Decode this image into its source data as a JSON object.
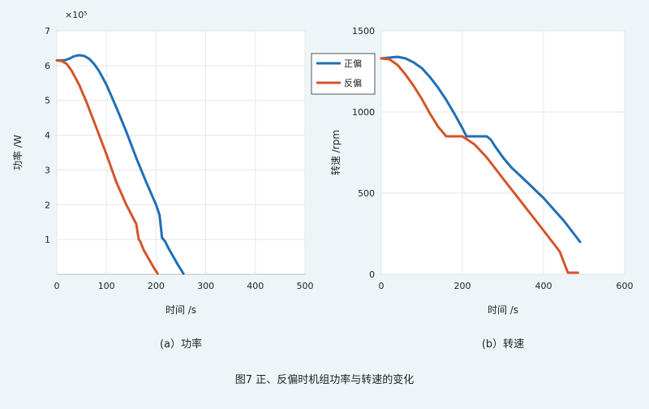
{
  "figure_caption": "图7 正、反偏时机组功率与转速的变化",
  "panel_a_caption": "(a）功率",
  "panel_b_caption": "(b）转速",
  "colors": {
    "forward": "#1f6fb5",
    "reverse": "#d4542a"
  },
  "chart_data": [
    {
      "type": "line",
      "xlabel": "时间 /s",
      "ylabel": "功率 /W",
      "multiplier": "×10⁵",
      "xlim": [
        0,
        500
      ],
      "ylim": [
        0,
        7
      ],
      "xticks": [
        "0",
        "100",
        "200",
        "300",
        "400",
        "500"
      ],
      "yticks": [
        "1",
        "2",
        "3",
        "4",
        "5",
        "6",
        "7"
      ],
      "grid": true,
      "series": [
        {
          "name": "正偏",
          "x": [
            0,
            15,
            25,
            35,
            45,
            55,
            65,
            75,
            85,
            100,
            120,
            140,
            160,
            180,
            200,
            207,
            212,
            218,
            225,
            235,
            245,
            255
          ],
          "y": [
            6.15,
            6.15,
            6.2,
            6.27,
            6.3,
            6.28,
            6.2,
            6.05,
            5.85,
            5.45,
            4.8,
            4.1,
            3.35,
            2.65,
            2.0,
            1.7,
            1.05,
            0.95,
            0.75,
            0.5,
            0.25,
            0.02
          ]
        },
        {
          "name": "反偏",
          "x": [
            0,
            10,
            20,
            30,
            45,
            60,
            80,
            100,
            120,
            140,
            160,
            165,
            168,
            175,
            185,
            195,
            203
          ],
          "y": [
            6.15,
            6.13,
            6.05,
            5.85,
            5.45,
            4.95,
            4.2,
            3.45,
            2.65,
            2.0,
            1.45,
            1.0,
            0.95,
            0.7,
            0.45,
            0.2,
            0.02
          ]
        }
      ]
    },
    {
      "type": "line",
      "xlabel": "时间 /s",
      "ylabel": "转速 /rpm",
      "xlim": [
        0,
        600
      ],
      "ylim": [
        0,
        1500
      ],
      "xticks": [
        "0",
        "200",
        "400",
        "600"
      ],
      "yticks": [
        "0",
        "500",
        "1000",
        "1500"
      ],
      "grid": true,
      "legend": "top-left",
      "series": [
        {
          "name": "正偏",
          "x": [
            0,
            20,
            40,
            60,
            80,
            100,
            120,
            140,
            160,
            180,
            200,
            210,
            260,
            270,
            280,
            300,
            320,
            350,
            400,
            450,
            490
          ],
          "y": [
            1330,
            1335,
            1340,
            1330,
            1305,
            1270,
            1215,
            1150,
            1075,
            990,
            900,
            850,
            850,
            830,
            790,
            720,
            660,
            590,
            470,
            330,
            200
          ]
        },
        {
          "name": "反偏",
          "x": [
            0,
            20,
            40,
            60,
            80,
            100,
            120,
            140,
            160,
            200,
            230,
            260,
            300,
            350,
            400,
            440,
            460,
            485
          ],
          "y": [
            1330,
            1325,
            1290,
            1230,
            1160,
            1080,
            990,
            910,
            850,
            850,
            800,
            720,
            590,
            430,
            270,
            140,
            10,
            10
          ]
        }
      ]
    }
  ]
}
